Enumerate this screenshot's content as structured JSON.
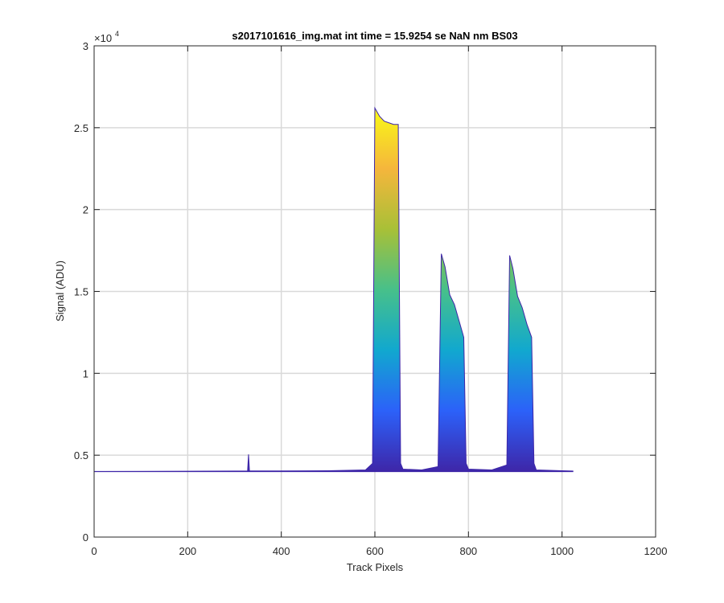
{
  "chart_data": {
    "type": "area",
    "title": "s2017101616_img.mat int time = 15.9254 se  NaN nm BS03",
    "xlabel": "Track Pixels",
    "ylabel": "Signal (ADU)",
    "y_multiplier_label": "×10",
    "y_multiplier_exponent": "4",
    "xlim": [
      0,
      1200
    ],
    "ylim": [
      0,
      30000
    ],
    "xticks": [
      0,
      200,
      400,
      600,
      800,
      1000,
      1200
    ],
    "xtick_labels": [
      "0",
      "200",
      "400",
      "600",
      "800",
      "1000",
      "1200"
    ],
    "yticks": [
      0,
      5000,
      10000,
      15000,
      20000,
      25000,
      30000
    ],
    "ytick_labels": [
      "0",
      "0.5",
      "1",
      "1.5",
      "2",
      "2.5",
      "3"
    ],
    "grid": true,
    "colormap": [
      "#3e26a8",
      "#2c61f9",
      "#11a8cf",
      "#47c08a",
      "#a8c037",
      "#f5b63c",
      "#f9fb15"
    ],
    "baseline": 4000,
    "series": [
      {
        "x": [
          0,
          100,
          200,
          300,
          328,
          330,
          332,
          400,
          500,
          580,
          595,
          600,
          610,
          620,
          630,
          640,
          650,
          655,
          660,
          700,
          735,
          742,
          750,
          760,
          770,
          780,
          790,
          795,
          800,
          850,
          882,
          888,
          895,
          905,
          915,
          925,
          935,
          940,
          945,
          1000,
          1024
        ],
        "y": [
          4000,
          4010,
          4020,
          4030,
          4040,
          5050,
          4040,
          4040,
          4050,
          4100,
          4500,
          26200,
          25700,
          25400,
          25300,
          25200,
          25200,
          4500,
          4150,
          4100,
          4300,
          17300,
          16500,
          14800,
          14200,
          13200,
          12200,
          4500,
          4150,
          4100,
          4400,
          17200,
          16400,
          14700,
          14000,
          13000,
          12200,
          4500,
          4100,
          4050,
          4030
        ]
      }
    ]
  }
}
